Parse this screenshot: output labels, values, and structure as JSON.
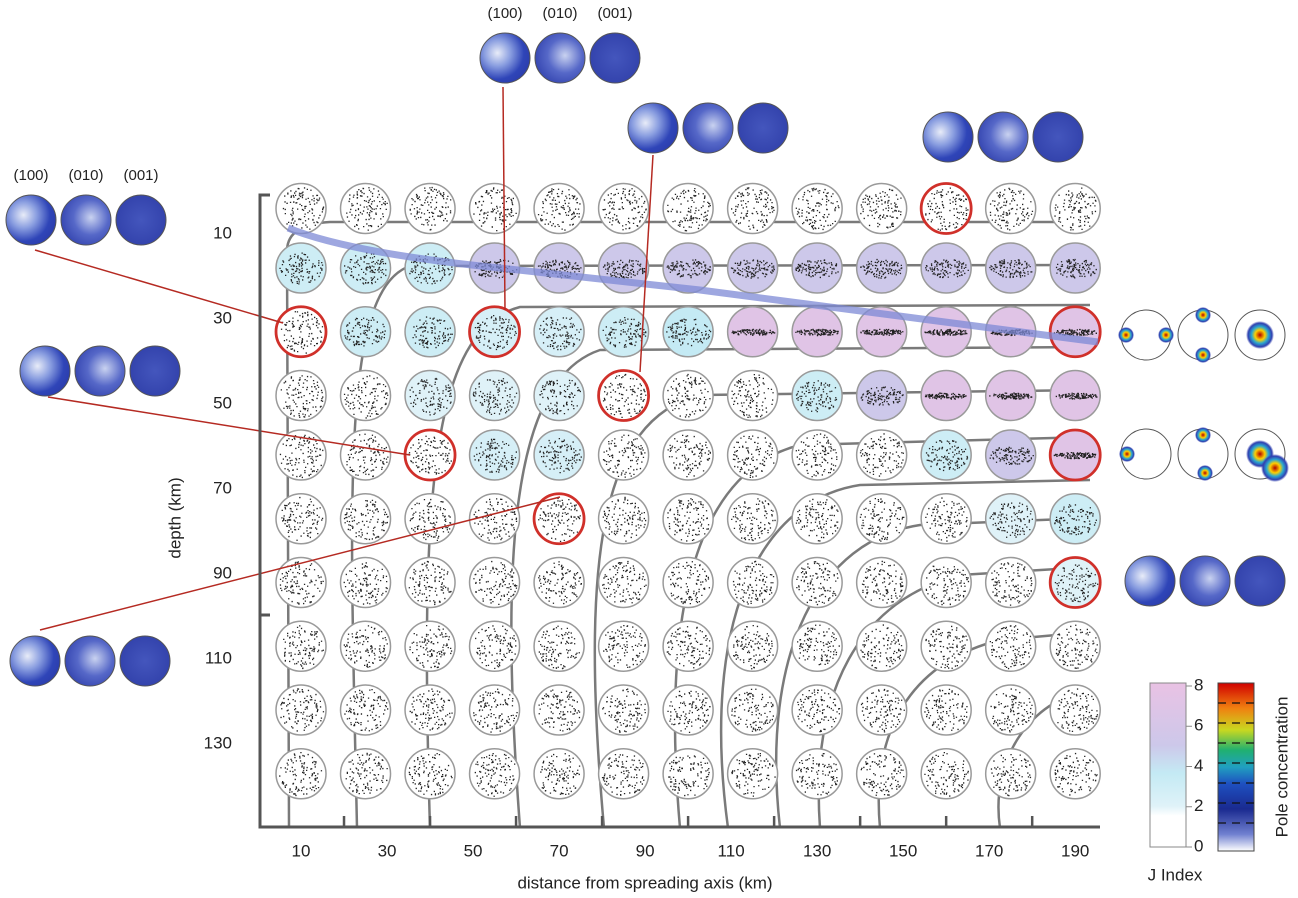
{
  "chart_data": {
    "type": "pole-figure-grid",
    "x_label": "distance from spreading axis (km)",
    "y_label": "depth (km)",
    "xlim": [
      0,
      196
    ],
    "ylim": [
      0,
      150
    ],
    "xticks": [
      10,
      30,
      50,
      70,
      90,
      110,
      130,
      150,
      170,
      190
    ],
    "x_minor_ticks": [
      20,
      40,
      60,
      80,
      100,
      120,
      140,
      160,
      180
    ],
    "yticks": [
      10,
      30,
      50,
      70,
      90,
      110,
      130
    ],
    "x": [
      10,
      25,
      40,
      55,
      70,
      85,
      100,
      115,
      130,
      145,
      160,
      175,
      190
    ],
    "depths": [
      4,
      18,
      33,
      48,
      62,
      77,
      92,
      107,
      122,
      137
    ],
    "j_index": [
      [
        1,
        1,
        1,
        1,
        1,
        1,
        1,
        1,
        1,
        1,
        1,
        1,
        1
      ],
      [
        3,
        3,
        3,
        5,
        5,
        5,
        5,
        5,
        5,
        5,
        5,
        5,
        5
      ],
      [
        1,
        3,
        3,
        2.5,
        2.5,
        3,
        3.5,
        7,
        7,
        7,
        7,
        7,
        7
      ],
      [
        1,
        1,
        2,
        2,
        2,
        1,
        1,
        1,
        3,
        5,
        7,
        7,
        7
      ],
      [
        1,
        1,
        1.5,
        2.5,
        2.5,
        1,
        1,
        1,
        1,
        1,
        3,
        5,
        7
      ],
      [
        1,
        1,
        1,
        1,
        1,
        1,
        1,
        1,
        1,
        1,
        1,
        2,
        3
      ],
      [
        1,
        1,
        1,
        1,
        1,
        1,
        1,
        1,
        1,
        1,
        1,
        1,
        2
      ],
      [
        1,
        1,
        1,
        1,
        1,
        1,
        1,
        1,
        1,
        1,
        1,
        1,
        1
      ],
      [
        1,
        1,
        1,
        1,
        1,
        1,
        1,
        1,
        1,
        1,
        1,
        1,
        1
      ],
      [
        1,
        1,
        1,
        1,
        1,
        1,
        1,
        1,
        1,
        1,
        1,
        1,
        1
      ]
    ],
    "highlighted": [
      [
        0,
        10
      ],
      [
        2,
        0
      ],
      [
        2,
        3
      ],
      [
        2,
        12
      ],
      [
        3,
        5
      ],
      [
        4,
        2
      ],
      [
        4,
        12
      ],
      [
        5,
        4
      ],
      [
        6,
        12
      ]
    ],
    "highlight_color": "#d0302a",
    "j_colors": [
      [
        0,
        "#ffffff"
      ],
      [
        1.5,
        "#ffffff"
      ],
      [
        2,
        "#dff2f8"
      ],
      [
        3.5,
        "#c4eaf4"
      ],
      [
        5,
        "#cdc8ea"
      ],
      [
        8,
        "#e9c2e4"
      ]
    ],
    "j_scale": {
      "label": "J  Index",
      "lim": [
        0,
        8
      ],
      "ticks": [
        0,
        2,
        4,
        6,
        8
      ]
    },
    "pole_scale": {
      "label": "Pole concentration"
    },
    "plane_labels": [
      "(100)",
      "(010)",
      "(001)"
    ]
  }
}
